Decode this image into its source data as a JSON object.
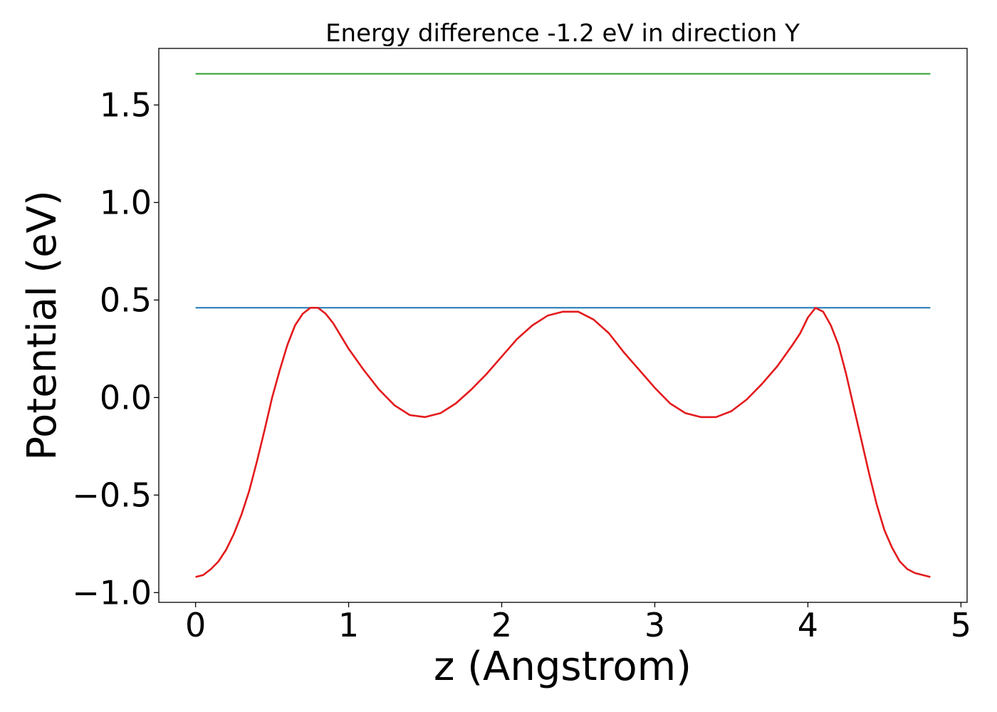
{
  "chart_data": {
    "type": "line",
    "title": "Energy difference -1.2 eV in direction Y",
    "xlabel": "z (Angstrom)",
    "ylabel": "Potential (eV)",
    "xlim": [
      -0.24,
      5.04
    ],
    "ylim": [
      -1.05,
      1.79
    ],
    "xticks": [
      {
        "value": 0,
        "label": "0"
      },
      {
        "value": 1,
        "label": "1"
      },
      {
        "value": 2,
        "label": "2"
      },
      {
        "value": 3,
        "label": "3"
      },
      {
        "value": 4,
        "label": "4"
      },
      {
        "value": 5,
        "label": "5"
      }
    ],
    "yticks": [
      {
        "value": -1.0,
        "label": "−1.0"
      },
      {
        "value": -0.5,
        "label": "−0.5"
      },
      {
        "value": 0.0,
        "label": "0.0"
      },
      {
        "value": 0.5,
        "label": "0.5"
      },
      {
        "value": 1.0,
        "label": "1.0"
      },
      {
        "value": 1.5,
        "label": "1.5"
      }
    ],
    "grid": false,
    "series": [
      {
        "color": "#2ca02c",
        "x": [
          0,
          4.8
        ],
        "y": [
          1.66,
          1.66
        ]
      },
      {
        "color": "#1f77b4",
        "x": [
          0,
          4.8
        ],
        "y": [
          0.46,
          0.46
        ]
      },
      {
        "color": "#e31a1c",
        "x": [
          0,
          0.05,
          0.1,
          0.15,
          0.2,
          0.25,
          0.3,
          0.35,
          0.4,
          0.45,
          0.5,
          0.55,
          0.6,
          0.65,
          0.7,
          0.75,
          0.8,
          0.85,
          0.9,
          1.0,
          1.1,
          1.2,
          1.3,
          1.4,
          1.5,
          1.6,
          1.7,
          1.8,
          1.9,
          2.0,
          2.1,
          2.2,
          2.3,
          2.4,
          2.5,
          2.6,
          2.7,
          2.8,
          2.9,
          3.0,
          3.1,
          3.2,
          3.3,
          3.4,
          3.5,
          3.6,
          3.7,
          3.8,
          3.9,
          3.95,
          4.0,
          4.05,
          4.1,
          4.15,
          4.2,
          4.25,
          4.3,
          4.35,
          4.4,
          4.45,
          4.5,
          4.55,
          4.6,
          4.65,
          4.7,
          4.75,
          4.8
        ],
        "y": [
          -0.92,
          -0.91,
          -0.88,
          -0.84,
          -0.78,
          -0.7,
          -0.6,
          -0.48,
          -0.33,
          -0.17,
          0.0,
          0.14,
          0.27,
          0.37,
          0.43,
          0.46,
          0.46,
          0.43,
          0.38,
          0.25,
          0.14,
          0.04,
          -0.04,
          -0.09,
          -0.1,
          -0.08,
          -0.03,
          0.04,
          0.12,
          0.21,
          0.3,
          0.37,
          0.42,
          0.44,
          0.44,
          0.4,
          0.33,
          0.23,
          0.14,
          0.05,
          -0.03,
          -0.08,
          -0.1,
          -0.1,
          -0.07,
          -0.01,
          0.07,
          0.16,
          0.27,
          0.33,
          0.41,
          0.46,
          0.44,
          0.37,
          0.27,
          0.12,
          -0.05,
          -0.22,
          -0.39,
          -0.55,
          -0.68,
          -0.77,
          -0.84,
          -0.88,
          -0.9,
          -0.91,
          -0.92
        ]
      }
    ]
  }
}
